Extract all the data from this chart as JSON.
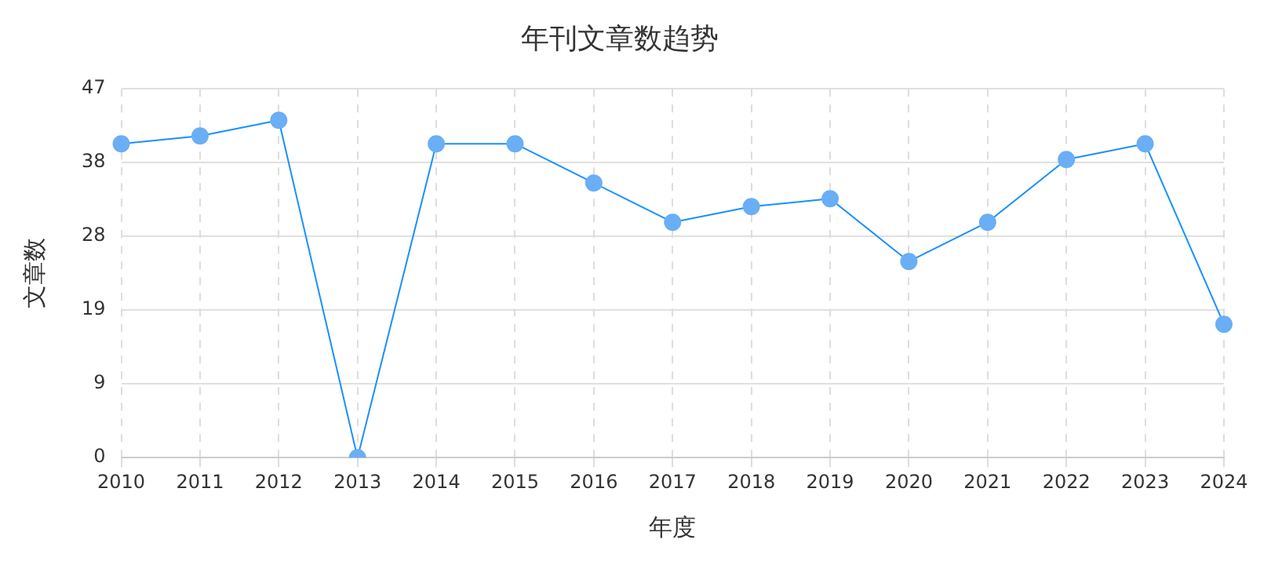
{
  "chart_data": {
    "type": "line",
    "title": "年刊文章数趋势",
    "xlabel": "年度",
    "ylabel": "文章数",
    "categories": [
      "2010",
      "2011",
      "2012",
      "2013",
      "2014",
      "2015",
      "2016",
      "2017",
      "2018",
      "2019",
      "2020",
      "2021",
      "2022",
      "2023",
      "2024"
    ],
    "series": [
      {
        "color": "#1890ff",
        "values": [
          40,
          41,
          43,
          0,
          40,
          40,
          35,
          30,
          32,
          33,
          25,
          30,
          38,
          40,
          17
        ]
      }
    ],
    "ylim": [
      0,
      47
    ],
    "yticks": [
      0,
      {
        "value": 9.4,
        "label": "9"
      },
      {
        "value": 18.8,
        "label": "19"
      },
      {
        "value": 28.2,
        "label": "28"
      },
      {
        "value": 37.6,
        "label": "38"
      },
      47
    ],
    "grid": true,
    "legend": false,
    "marker": "circle",
    "line_style": "solid"
  }
}
